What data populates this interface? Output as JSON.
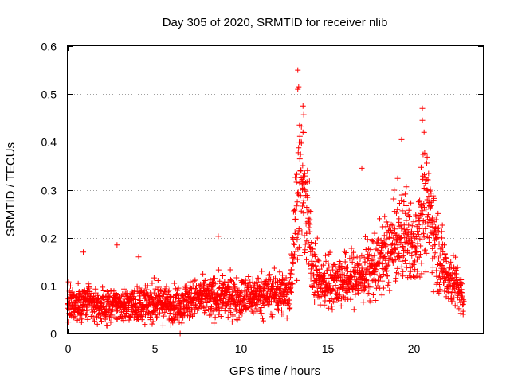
{
  "chart_data": {
    "type": "scatter",
    "title": "Day 305 of 2020, SRMTID for receiver nlib",
    "xlabel": "GPS time / hours",
    "ylabel": "SRMTID / TECUs",
    "xlim": [
      0,
      24
    ],
    "ylim": [
      0,
      0.6
    ],
    "xticks": [
      0,
      5,
      10,
      15,
      20
    ],
    "xtick_labels": [
      "0",
      "5",
      "10",
      "15",
      "20"
    ],
    "yticks": [
      0,
      0.1,
      0.2,
      0.3,
      0.4,
      0.5,
      0.6
    ],
    "ytick_labels": [
      "0",
      "0.1",
      "0.2",
      "0.3",
      "0.4",
      "0.5",
      "0.6"
    ],
    "grid": true,
    "marker": "+",
    "color": "#ff0000",
    "series": [
      {
        "name": "SRMTID",
        "profile": {
          "hours": [
            0.0,
            1.0,
            2.0,
            3.0,
            4.0,
            5.0,
            6.0,
            7.0,
            8.0,
            9.0,
            10.0,
            11.0,
            12.0,
            12.8,
            13.2,
            13.5,
            13.8,
            14.2,
            14.6,
            15.0,
            16.0,
            17.0,
            18.0,
            19.0,
            19.5,
            20.0,
            20.5,
            21.0,
            21.5,
            22.0,
            22.5,
            22.9
          ],
          "median": [
            0.06,
            0.065,
            0.055,
            0.06,
            0.06,
            0.065,
            0.06,
            0.07,
            0.075,
            0.075,
            0.075,
            0.08,
            0.085,
            0.08,
            0.25,
            0.32,
            0.25,
            0.14,
            0.1,
            0.11,
            0.11,
            0.12,
            0.15,
            0.19,
            0.21,
            0.17,
            0.27,
            0.24,
            0.16,
            0.12,
            0.1,
            0.06
          ]
        },
        "n_points": 2300,
        "outliers": [
          {
            "x": 13.3,
            "y": 0.55
          },
          {
            "x": 13.35,
            "y": 0.515
          },
          {
            "x": 13.3,
            "y": 0.51
          },
          {
            "x": 13.6,
            "y": 0.475
          },
          {
            "x": 20.5,
            "y": 0.47
          },
          {
            "x": 20.5,
            "y": 0.445
          },
          {
            "x": 20.6,
            "y": 0.42
          },
          {
            "x": 19.3,
            "y": 0.405
          },
          {
            "x": 13.4,
            "y": 0.435
          },
          {
            "x": 13.6,
            "y": 0.42
          },
          {
            "x": 13.5,
            "y": 0.4
          },
          {
            "x": 17.0,
            "y": 0.345
          },
          {
            "x": 2.85,
            "y": 0.185
          },
          {
            "x": 8.7,
            "y": 0.203
          },
          {
            "x": 0.9,
            "y": 0.17
          },
          {
            "x": 4.1,
            "y": 0.16
          },
          {
            "x": 6.5,
            "y": 0.0
          }
        ]
      }
    ]
  }
}
